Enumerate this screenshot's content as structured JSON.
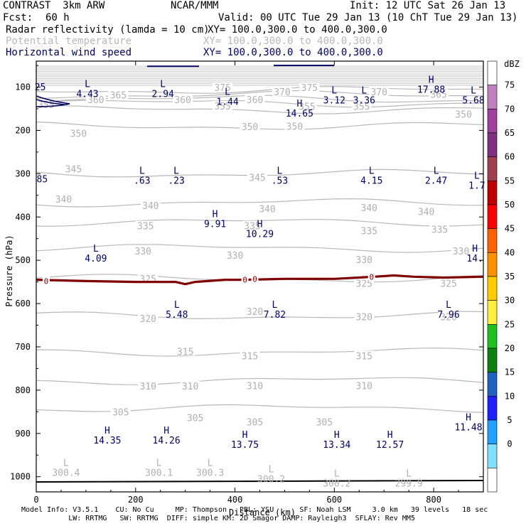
{
  "header": {
    "title": "CONTRAST  3km ARW",
    "org": "NCAR/MMM",
    "init": "Init: 12 UTC Sat 26 Jan 13",
    "fcst_label": "Fcst:",
    "fcst_value": "60 h",
    "valid": "Valid: 00 UTC Tue 29 Jan 13 (10 ChT Tue 29 Jan 13)",
    "fields": [
      {
        "name": "Radar reflectivity (lamda = 10 cm)",
        "xy": "XY= 100.0,300.0 to 400.0,300.0",
        "color": "#000000"
      },
      {
        "name": "Potential temperature",
        "xy": "XY= 100.0,300.0 to 400.0,300.0",
        "color": "#b8b8b8"
      },
      {
        "name": "Horizontal wind speed",
        "xy": "XY= 100.0,300.0 to 400.0,300.0",
        "color": "#000060"
      }
    ]
  },
  "footer": {
    "line1": "Model Info: V3.5.1    CU: No Cu     MP: Thompson   PBL: YSU      SF: Noah LSM     3.0 km   39 levels   18 sec",
    "line2": "           LW: RRTMG   SW: RRTMG  DIFF: simple KM: 2D Smagor DAMP: Rayleigh3  SFLAY: Rev MM5"
  },
  "chart_data": {
    "type": "contour",
    "xlabel": "Distance (km)",
    "ylabel": "Pressure (hPa)",
    "xlim": [
      0,
      900
    ],
    "ylim": [
      1035,
      40
    ],
    "x_ticks": [
      0,
      200,
      400,
      600,
      800
    ],
    "y_ticks": [
      100,
      200,
      300,
      400,
      500,
      600,
      700,
      800,
      900,
      1000
    ],
    "colorbar": {
      "label": "dBZ",
      "ticks": [
        "75",
        "70",
        "65",
        "60",
        "55",
        "50",
        "45",
        "40",
        "35",
        "30",
        "25",
        "20",
        "15",
        "10",
        "5",
        "0"
      ],
      "colors": [
        "#ffffff",
        "#c080c0",
        "#a040a0",
        "#803080",
        "#a04050",
        "#c00000",
        "#ff0000",
        "#ff6000",
        "#ff9000",
        "#ffcc00",
        "#ffee40",
        "#20c020",
        "#108010",
        "#2060c0",
        "#2020ff",
        "#20a0ff",
        "#80e0ff",
        "#ffffff"
      ]
    },
    "theta_levels": [
      {
        "label": "375",
        "p": 107
      },
      {
        "label": "370",
        "p": 118
      },
      {
        "label": "365",
        "p": 128
      },
      {
        "label": "360",
        "p": 137
      },
      {
        "label": "355",
        "p": 152
      },
      {
        "label": "350",
        "p": 190
      },
      {
        "label": "345",
        "p": 300
      },
      {
        "label": "340",
        "p": 367
      },
      {
        "label": "335",
        "p": 412
      },
      {
        "label": "330",
        "p": 472
      },
      {
        "label": "325",
        "p": 542
      },
      {
        "label": "320",
        "p": 628
      },
      {
        "label": "315",
        "p": 712
      },
      {
        "label": "310",
        "p": 778
      },
      {
        "label": "305",
        "p": 842
      }
    ],
    "theta_label_positions": [
      {
        "t": "375",
        "x": 375,
        "p": 102
      },
      {
        "t": "375",
        "x": 550,
        "p": 102
      },
      {
        "t": "370",
        "x": 690,
        "p": 112
      },
      {
        "t": "370",
        "x": 495,
        "p": 112
      },
      {
        "t": "365",
        "x": 165,
        "p": 120
      },
      {
        "t": "365",
        "x": 810,
        "p": 118
      },
      {
        "t": "360",
        "x": 120,
        "p": 130
      },
      {
        "t": "360",
        "x": 295,
        "p": 130
      },
      {
        "t": "360",
        "x": 440,
        "p": 130
      },
      {
        "t": "355",
        "x": 20,
        "p": 142
      },
      {
        "t": "355",
        "x": 375,
        "p": 145
      },
      {
        "t": "355",
        "x": 545,
        "p": 146
      },
      {
        "t": "355",
        "x": 655,
        "p": 146
      },
      {
        "t": "350",
        "x": 85,
        "p": 208
      },
      {
        "t": "350",
        "x": 430,
        "p": 193
      },
      {
        "t": "350",
        "x": 520,
        "p": 192
      },
      {
        "t": "350",
        "x": 860,
        "p": 164
      },
      {
        "t": "345",
        "x": 75,
        "p": 290
      },
      {
        "t": "345",
        "x": 445,
        "p": 310
      },
      {
        "t": "340",
        "x": 55,
        "p": 360
      },
      {
        "t": "340",
        "x": 230,
        "p": 375
      },
      {
        "t": "340",
        "x": 465,
        "p": 382
      },
      {
        "t": "340",
        "x": 670,
        "p": 380
      },
      {
        "t": "340",
        "x": 785,
        "p": 389
      },
      {
        "t": "335",
        "x": 220,
        "p": 422
      },
      {
        "t": "335",
        "x": 435,
        "p": 422
      },
      {
        "t": "335",
        "x": 670,
        "p": 433
      },
      {
        "t": "335",
        "x": 812,
        "p": 430
      },
      {
        "t": "330",
        "x": 215,
        "p": 480
      },
      {
        "t": "330",
        "x": 400,
        "p": 490
      },
      {
        "t": "330",
        "x": 660,
        "p": 500
      },
      {
        "t": "330",
        "x": 855,
        "p": 480
      },
      {
        "t": "325",
        "x": 225,
        "p": 544
      },
      {
        "t": "325",
        "x": 660,
        "p": 555
      },
      {
        "t": "325",
        "x": 830,
        "p": 555
      },
      {
        "t": "320",
        "x": 225,
        "p": 636
      },
      {
        "t": "320",
        "x": 440,
        "p": 620
      },
      {
        "t": "320",
        "x": 660,
        "p": 632
      },
      {
        "t": "320",
        "x": 830,
        "p": 632
      },
      {
        "t": "315",
        "x": 300,
        "p": 712
      },
      {
        "t": "315",
        "x": 430,
        "p": 722
      },
      {
        "t": "315",
        "x": 660,
        "p": 722
      },
      {
        "t": "310",
        "x": 225,
        "p": 792
      },
      {
        "t": "310",
        "x": 310,
        "p": 792
      },
      {
        "t": "310",
        "x": 440,
        "p": 791
      },
      {
        "t": "310",
        "x": 660,
        "p": 791
      },
      {
        "t": "305",
        "x": 170,
        "p": 852
      },
      {
        "t": "305",
        "x": 320,
        "p": 865
      },
      {
        "t": "305",
        "x": 440,
        "p": 875
      },
      {
        "t": "305",
        "x": 580,
        "p": 875
      }
    ],
    "wind_extrema": [
      {
        "t": "L",
        "v": "4.43",
        "x": 103,
        "p": 100
      },
      {
        "t": "L",
        "v": "2.94",
        "x": 255,
        "p": 100
      },
      {
        "t": "L",
        "v": "1.44",
        "x": 385,
        "p": 118
      },
      {
        "t": "L",
        "v": "3.12",
        "x": 600,
        "p": 115
      },
      {
        "t": "L",
        "v": "3.36",
        "x": 660,
        "p": 115
      },
      {
        "t": "H",
        "v": "17.88",
        "x": 795,
        "p": 90
      },
      {
        "t": "L",
        "v": "5.68",
        "x": 880,
        "p": 115
      },
      {
        "t": "H",
        "v": "14.65",
        "x": 530,
        "p": 145
      },
      {
        "t": "L",
        "v": ".63",
        "x": 213,
        "p": 300
      },
      {
        "t": "L",
        "v": ".23",
        "x": 282,
        "p": 300
      },
      {
        "t": "L",
        "v": ".53",
        "x": 490,
        "p": 300
      },
      {
        "t": "L",
        "v": "4.15",
        "x": 675,
        "p": 300
      },
      {
        "t": "L",
        "v": "2.47",
        "x": 805,
        "p": 300
      },
      {
        "t": "L",
        "v": "1.7",
        "x": 887,
        "p": 312
      },
      {
        "t": "H",
        "v": "9.91",
        "x": 360,
        "p": 400
      },
      {
        "t": "H",
        "v": "10.29",
        "x": 450,
        "p": 423
      },
      {
        "t": "L",
        "v": "4.09",
        "x": 120,
        "p": 480
      },
      {
        "t": "H",
        "v": "14.",
        "x": 883,
        "p": 480
      },
      {
        "t": "L",
        "v": "5.48",
        "x": 283,
        "p": 610
      },
      {
        "t": "L",
        "v": "7.82",
        "x": 480,
        "p": 610
      },
      {
        "t": "L",
        "v": "7.96",
        "x": 830,
        "p": 610
      },
      {
        "t": "H",
        "v": "11.48",
        "x": 870,
        "p": 870
      },
      {
        "t": "H",
        "v": "14.35",
        "x": 143,
        "p": 900
      },
      {
        "t": "H",
        "v": "14.26",
        "x": 262,
        "p": 900
      },
      {
        "t": "H",
        "v": "13.75",
        "x": 420,
        "p": 910
      },
      {
        "t": "H",
        "v": "13.34",
        "x": 605,
        "p": 910
      },
      {
        "t": "H",
        "v": "12.57",
        "x": 712,
        "p": 910
      }
    ],
    "theta_extrema": [
      {
        "t": "L",
        "v": "300.4",
        "x": 60,
        "p": 975
      },
      {
        "t": "L",
        "v": "300.1",
        "x": 247,
        "p": 975
      },
      {
        "t": "L",
        "v": "300.3",
        "x": 350,
        "p": 975
      },
      {
        "t": "L",
        "v": "300.2",
        "x": 473,
        "p": 990
      },
      {
        "t": "L",
        "v": "300.2",
        "x": 605,
        "p": 1000
      },
      {
        "t": "L",
        "v": "299.9",
        "x": 750,
        "p": 1000
      }
    ],
    "edge_labels": [
      {
        "v": "25",
        "x": 8,
        "p": 107,
        "color": "#000060"
      },
      {
        "v": "85",
        "x": 12,
        "p": 320,
        "color": "#000060"
      }
    ],
    "zero_contour_label": "0",
    "zero_contour": {
      "x": [
        0,
        100,
        200,
        280,
        300,
        320,
        380,
        420,
        500,
        600,
        680,
        720,
        760,
        820,
        900
      ],
      "p": [
        545,
        548,
        550,
        550,
        555,
        550,
        545,
        545,
        543,
        543,
        538,
        535,
        538,
        540,
        538
      ]
    },
    "surface_p": 1012
  }
}
